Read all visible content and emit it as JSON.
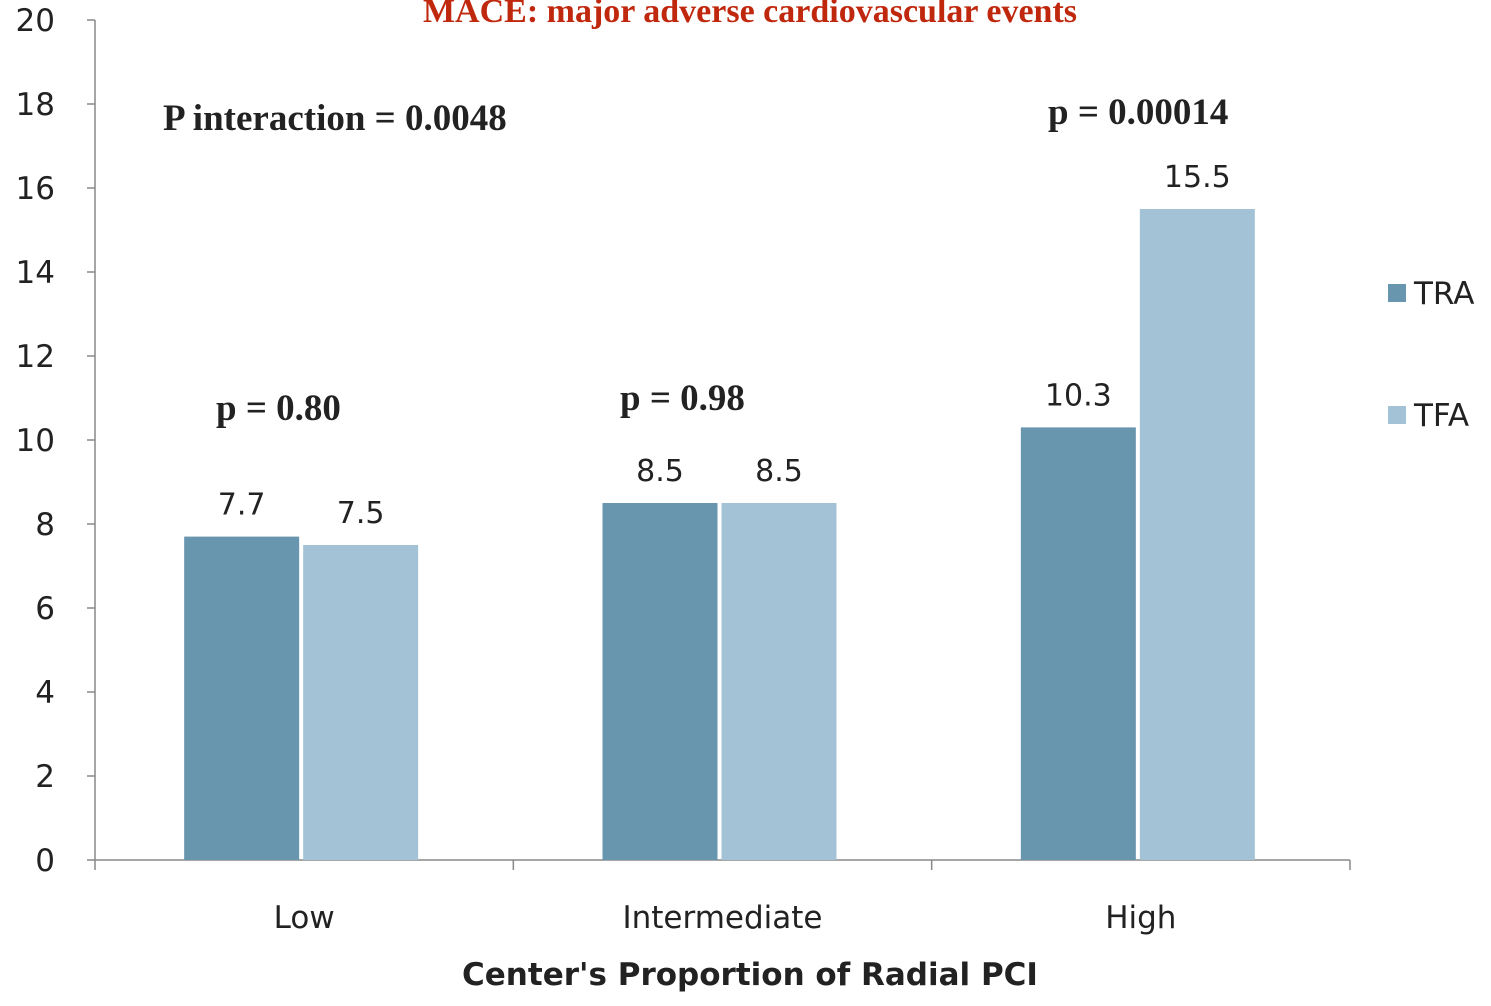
{
  "chart_data": {
    "type": "bar",
    "title": "MACE: major adverse cardiovascular events",
    "x_label": "Center's Proportion of Radial PCI",
    "categories": [
      "Low",
      "Intermediate",
      "High"
    ],
    "series": [
      {
        "name": "TRA",
        "color": "#6896ae",
        "values": [
          7.7,
          8.5,
          10.3
        ]
      },
      {
        "name": "TFA",
        "color": "#a4c2d6",
        "values": [
          7.5,
          8.5,
          15.5
        ]
      }
    ],
    "annotations": [
      "P interaction = 0.0048",
      "p = 0.80",
      "p = 0.98",
      "p = 0.00014"
    ],
    "ylim": [
      0,
      20
    ],
    "yticks": [
      0,
      2,
      4,
      6,
      8,
      10,
      12,
      14,
      16,
      18,
      20
    ],
    "legend": "right",
    "grid": false
  }
}
